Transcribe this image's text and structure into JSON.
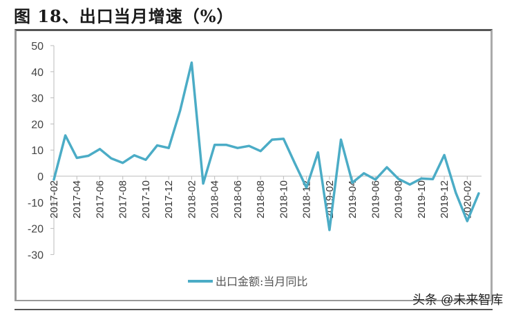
{
  "title": "图 18、出口当月增速（%）",
  "watermark": "头条 @未来智库",
  "legend": {
    "label": "出口金额:当月同比",
    "color": "#4BACC6"
  },
  "chart_data": {
    "type": "line",
    "title": "图 18、出口当月增速（%）",
    "xlabel": "",
    "ylabel": "",
    "ylim": [
      -30,
      50
    ],
    "yticks": [
      50,
      40,
      30,
      20,
      10,
      0,
      -10,
      -20,
      -30
    ],
    "grid": false,
    "legend_position": "bottom",
    "tick_labels": [
      "2017-02",
      "2017-04",
      "2017-06",
      "2017-08",
      "2017-10",
      "2017-12",
      "2018-02",
      "2018-04",
      "2018-06",
      "2018-08",
      "2018-10",
      "2018-12",
      "2019-02",
      "2019-04",
      "2019-06",
      "2019-08",
      "2019-10",
      "2019-12",
      "2020-02"
    ],
    "x": [
      "2017-02",
      "2017-03",
      "2017-04",
      "2017-05",
      "2017-06",
      "2017-07",
      "2017-08",
      "2017-09",
      "2017-10",
      "2017-11",
      "2017-12",
      "2018-01",
      "2018-02",
      "2018-03",
      "2018-04",
      "2018-05",
      "2018-06",
      "2018-07",
      "2018-08",
      "2018-09",
      "2018-10",
      "2018-11",
      "2018-12",
      "2019-01",
      "2019-02",
      "2019-03",
      "2019-04",
      "2019-05",
      "2019-06",
      "2019-07",
      "2019-08",
      "2019-09",
      "2019-10",
      "2019-11",
      "2019-12",
      "2020-01",
      "2020-02",
      "2020-03"
    ],
    "series": [
      {
        "name": "出口金额:当月同比",
        "color": "#4BACC6",
        "values": [
          -1.3,
          15.6,
          7.0,
          7.8,
          10.4,
          6.8,
          5.1,
          8.0,
          6.3,
          11.8,
          10.8,
          25.2,
          43.5,
          -2.8,
          12.0,
          12.0,
          10.8,
          11.6,
          9.6,
          14.0,
          14.3,
          4.8,
          -4.4,
          9.1,
          -20.6,
          14.0,
          -2.5,
          1.1,
          -1.3,
          3.4,
          -1.0,
          -3.2,
          -0.9,
          -1.1,
          8.1,
          -6.3,
          -17.2,
          -6.6
        ]
      }
    ]
  }
}
